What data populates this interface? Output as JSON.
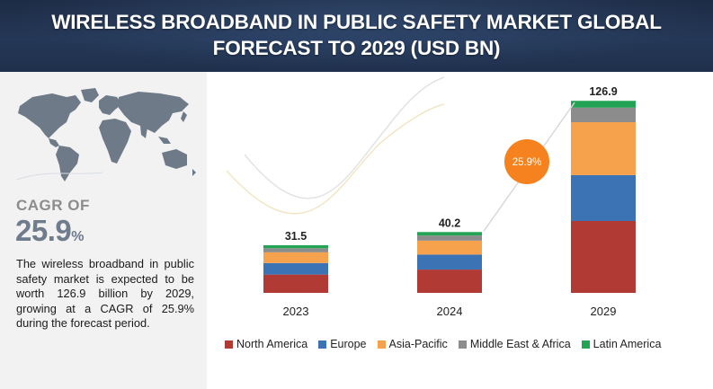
{
  "header": {
    "title_line1": "WIRELESS BROADBAND IN PUBLIC SAFETY MARKET GLOBAL",
    "title_line2": "FORECAST TO 2029 (USD BN)"
  },
  "left_panel": {
    "cagr_label": "CAGR OF",
    "cagr_value": "25.9",
    "cagr_unit": "%",
    "summary": "The wireless broadband in public safety market is expected to be worth 126.9 billion by 2029, growing at a CAGR of 25.9% during the forecast period."
  },
  "colors": {
    "north_america": "#b23a34",
    "europe": "#3b73b5",
    "asia_pacific": "#f6a24c",
    "middle_east_africa": "#8c8c8c",
    "latin_america": "#23a455",
    "cagr_bubble": "#f5821f",
    "header_bg": "#1f304c"
  },
  "chart_data": {
    "type": "bar",
    "stacked": true,
    "categories": [
      "2023",
      "2024",
      "2029"
    ],
    "totals": [
      "31.5",
      "40.2",
      "126.9"
    ],
    "series": [
      {
        "name": "North America",
        "color": "#b23a34",
        "values": [
          12.1,
          15.4,
          47.5
        ]
      },
      {
        "name": "Europe",
        "color": "#3b73b5",
        "values": [
          7.6,
          9.9,
          30.3
        ]
      },
      {
        "name": "Asia-Pacific",
        "color": "#f6a24c",
        "values": [
          7.1,
          9.2,
          35.0
        ]
      },
      {
        "name": "Middle East & Africa",
        "color": "#8c8c8c",
        "values": [
          2.7,
          3.4,
          9.6
        ]
      },
      {
        "name": "Latin America",
        "color": "#23a455",
        "values": [
          2.0,
          2.3,
          4.5
        ]
      }
    ],
    "cagr_annotation": "25.9%",
    "ylim": [
      0,
      130
    ],
    "legend_position": "bottom",
    "grid": false
  }
}
